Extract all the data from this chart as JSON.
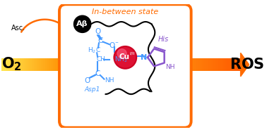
{
  "title": "In-between state",
  "title_color": "#FF6B00",
  "bg_color": "#FFFFFF",
  "box_color": "#FF6B00",
  "blue_color": "#4499FF",
  "purple_color": "#8855CC",
  "cu_color_main": "#DD1133",
  "cu_color_light": "#EE4466",
  "black": "#000000",
  "orange": "#FF6B00",
  "o2_label": "O$_2$",
  "ros_label": "ROS",
  "asc_label": "Asc.",
  "abeta_label": "Aβ",
  "his_label": "His",
  "asp_label": "Asp1"
}
